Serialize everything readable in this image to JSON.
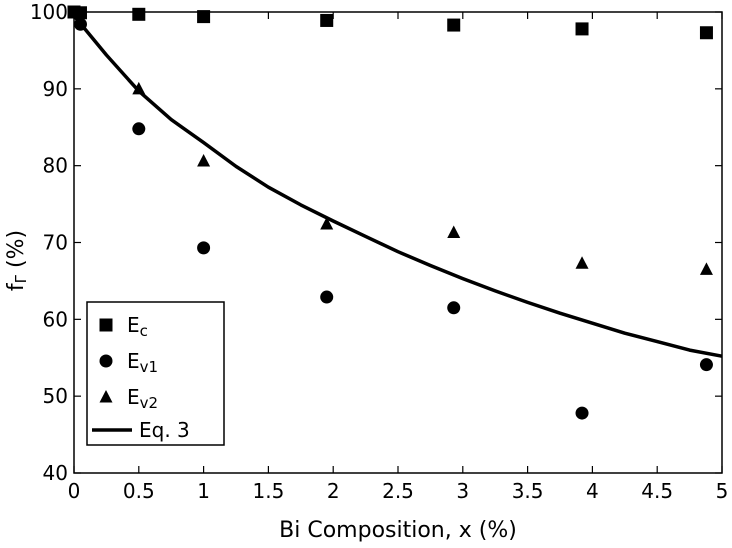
{
  "chart_data": {
    "type": "scatter",
    "xlabel": "Bi Composition, x (%)",
    "ylabel": {
      "main": "f",
      "sub": "Γ",
      "rest": " (%)"
    },
    "xlim": [
      0,
      5
    ],
    "ylim": [
      40,
      100
    ],
    "xticks": [
      "0",
      "0.5",
      "1",
      "1.5",
      "2",
      "2.5",
      "3",
      "3.5",
      "4",
      "4.5",
      "5"
    ],
    "yticks": [
      "40",
      "50",
      "60",
      "70",
      "80",
      "90",
      "100"
    ],
    "grid": false,
    "legend_position": "bottom-left",
    "series": [
      {
        "name": {
          "main": "E",
          "sub": "c"
        },
        "marker": "square",
        "x": [
          0.0,
          0.05,
          0.5,
          1.0,
          1.95,
          2.93,
          3.92,
          4.88
        ],
        "y": [
          100.0,
          99.9,
          99.7,
          99.4,
          98.9,
          98.3,
          97.8,
          97.3
        ]
      },
      {
        "name": {
          "main": "E",
          "sub": "v1"
        },
        "marker": "circle",
        "x": [
          0.05,
          0.5,
          1.0,
          1.95,
          2.93,
          3.92,
          4.88
        ],
        "y": [
          98.4,
          84.8,
          69.3,
          62.9,
          61.5,
          47.8,
          54.1
        ]
      },
      {
        "name": {
          "main": "E",
          "sub": "v2"
        },
        "marker": "triangle",
        "x": [
          0.5,
          1.0,
          1.95,
          2.93,
          3.92,
          4.88
        ],
        "y": [
          90.0,
          80.6,
          72.4,
          71.3,
          67.3,
          66.5
        ]
      },
      {
        "name": {
          "main": "Eq. 3",
          "sub": ""
        },
        "marker": "line",
        "x": [
          0,
          0.25,
          0.5,
          0.75,
          1.0,
          1.25,
          1.5,
          1.75,
          2.0,
          2.25,
          2.5,
          2.75,
          3.0,
          3.25,
          3.5,
          3.75,
          4.0,
          4.25,
          4.5,
          4.75,
          5.0
        ],
        "y": [
          99.5,
          94.4,
          89.7,
          86.0,
          83.0,
          79.9,
          77.2,
          74.9,
          72.8,
          70.8,
          68.8,
          67.0,
          65.3,
          63.7,
          62.2,
          60.8,
          59.5,
          58.2,
          57.1,
          56.0,
          55.2
        ]
      }
    ]
  }
}
